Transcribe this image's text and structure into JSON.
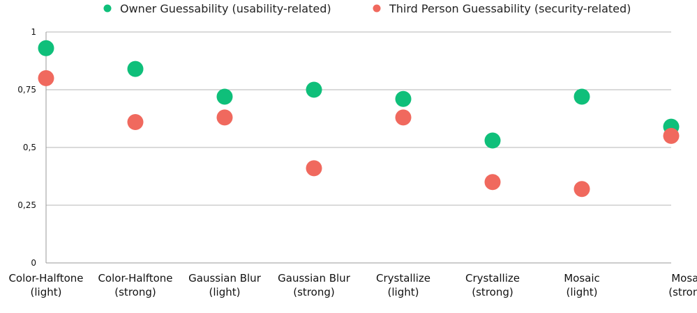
{
  "chart_data": {
    "type": "scatter",
    "title": "",
    "xlabel": "",
    "ylabel": "",
    "ylim": [
      0,
      1
    ],
    "yticks": [
      {
        "value": 0,
        "label": "0"
      },
      {
        "value": 0.25,
        "label": "0,25"
      },
      {
        "value": 0.5,
        "label": "0,5"
      },
      {
        "value": 0.75,
        "label": "0,75"
      },
      {
        "value": 1,
        "label": "1"
      }
    ],
    "grid": true,
    "legend_position": "top",
    "categories": [
      [
        "Color-Halftone",
        "(light)"
      ],
      [
        "Color-Halftone",
        "(strong)"
      ],
      [
        "Gaussian Blur",
        "(light)"
      ],
      [
        "Gaussian Blur",
        "(strong)"
      ],
      [
        "Crystallize",
        "(light)"
      ],
      [
        "Crystallize",
        "(strong)"
      ],
      [
        "Mosaic",
        "(light)"
      ],
      [
        "Mosaic",
        "(strong)"
      ]
    ],
    "series": [
      {
        "name": "Owner Guessability (usability-related)",
        "color": "#0fbf7a",
        "values": [
          0.93,
          0.84,
          0.72,
          0.75,
          0.71,
          0.53,
          0.72,
          0.59
        ]
      },
      {
        "name": "Third Person Guessability (security-related)",
        "color": "#f0695e",
        "values": [
          0.8,
          0.61,
          0.63,
          0.41,
          0.63,
          0.35,
          0.32,
          0.55
        ]
      }
    ]
  }
}
